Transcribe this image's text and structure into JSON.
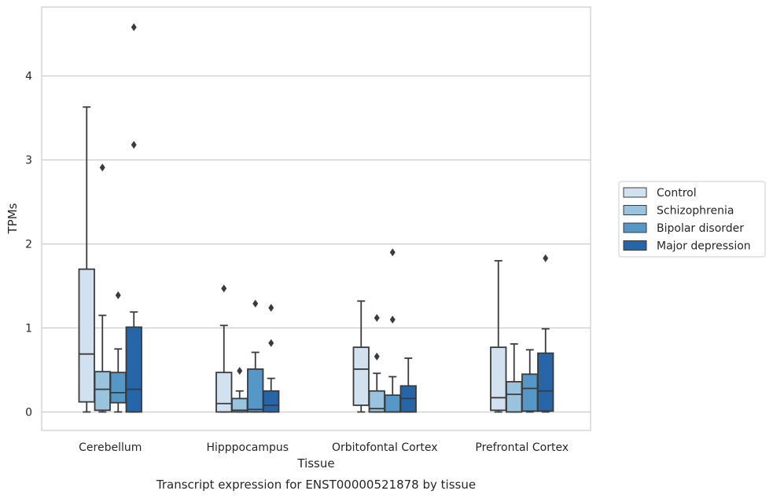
{
  "caption": "Transcript expression for ENST00000521878 by tissue",
  "chart_data": {
    "type": "box",
    "xlabel": "Tissue",
    "ylabel": "TPMs",
    "ylim": [
      -0.22,
      4.82
    ],
    "yticks": [
      0,
      1,
      2,
      3,
      4
    ],
    "grid": "horizontal",
    "legend_position": "right-center",
    "categories": [
      "Cerebellum",
      "Hipppocampus",
      "Orbitofontal Cortex",
      "Prefrontal Cortex"
    ],
    "series": [
      {
        "name": "Control",
        "color": "#d1e1f0",
        "boxes": [
          {
            "whislo": 0.0,
            "q1": 0.12,
            "med": 0.69,
            "q3": 1.7,
            "whishi": 3.63,
            "fliers": []
          },
          {
            "whislo": 0.0,
            "q1": 0.0,
            "med": 0.1,
            "q3": 0.47,
            "whishi": 1.03,
            "fliers": [
              1.47
            ]
          },
          {
            "whislo": 0.0,
            "q1": 0.08,
            "med": 0.51,
            "q3": 0.77,
            "whishi": 1.32,
            "fliers": []
          },
          {
            "whislo": 0.0,
            "q1": 0.02,
            "med": 0.17,
            "q3": 0.77,
            "whishi": 1.8,
            "fliers": []
          }
        ]
      },
      {
        "name": "Schizophrenia",
        "color": "#9ac3de",
        "boxes": [
          {
            "whislo": 0.0,
            "q1": 0.02,
            "med": 0.27,
            "q3": 0.48,
            "whishi": 1.15,
            "fliers": [
              2.91
            ]
          },
          {
            "whislo": 0.0,
            "q1": 0.0,
            "med": 0.02,
            "q3": 0.16,
            "whishi": 0.25,
            "fliers": [
              0.49
            ]
          },
          {
            "whislo": 0.0,
            "q1": 0.0,
            "med": 0.04,
            "q3": 0.25,
            "whishi": 0.46,
            "fliers": [
              0.66,
              1.12
            ]
          },
          {
            "whislo": 0.0,
            "q1": 0.0,
            "med": 0.21,
            "q3": 0.36,
            "whishi": 0.81,
            "fliers": []
          }
        ]
      },
      {
        "name": "Bipolar disorder",
        "color": "#5597c6",
        "boxes": [
          {
            "whislo": 0.0,
            "q1": 0.11,
            "med": 0.23,
            "q3": 0.47,
            "whishi": 0.75,
            "fliers": [
              1.39
            ]
          },
          {
            "whislo": 0.0,
            "q1": 0.0,
            "med": 0.03,
            "q3": 0.51,
            "whishi": 0.71,
            "fliers": [
              1.29
            ]
          },
          {
            "whislo": 0.0,
            "q1": 0.0,
            "med": 0.0,
            "q3": 0.2,
            "whishi": 0.42,
            "fliers": [
              1.1,
              1.9
            ]
          },
          {
            "whislo": 0.0,
            "q1": 0.01,
            "med": 0.28,
            "q3": 0.45,
            "whishi": 0.74,
            "fliers": []
          }
        ]
      },
      {
        "name": "Major depression",
        "color": "#2666a8",
        "boxes": [
          {
            "whislo": 0.0,
            "q1": 0.0,
            "med": 0.27,
            "q3": 1.01,
            "whishi": 1.19,
            "fliers": [
              3.18,
              4.58
            ]
          },
          {
            "whislo": 0.0,
            "q1": 0.0,
            "med": 0.08,
            "q3": 0.25,
            "whishi": 0.4,
            "fliers": [
              0.82,
              1.24
            ]
          },
          {
            "whislo": 0.0,
            "q1": 0.0,
            "med": 0.16,
            "q3": 0.31,
            "whishi": 0.64,
            "fliers": []
          },
          {
            "whislo": 0.0,
            "q1": 0.01,
            "med": 0.25,
            "q3": 0.7,
            "whishi": 0.99,
            "fliers": [
              1.83
            ]
          }
        ]
      }
    ]
  }
}
